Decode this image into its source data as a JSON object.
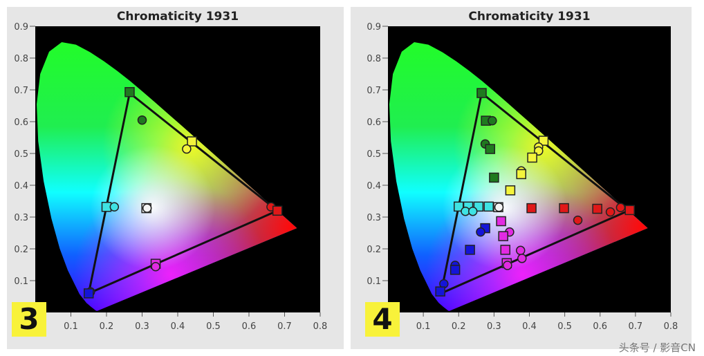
{
  "watermark": "头条号 / 影音CN",
  "colors": {
    "green": "#1f7a1f",
    "yellow": "#f4f43c",
    "cyan": "#3fe3e3",
    "white": "#f4f4f4",
    "red": "#e01818",
    "magenta": "#e22ae2",
    "blue": "#1414d8"
  },
  "chart_data": [
    {
      "type": "scatter",
      "title": "Chromaticity 1931",
      "badge": "3",
      "xlim": [
        0,
        0.8
      ],
      "ylim": [
        0,
        0.9
      ],
      "xticks": [
        "0.1",
        "0.2",
        "0.3",
        "0.4",
        "0.5",
        "0.6",
        "0.7",
        "0.8"
      ],
      "yticks": [
        "0.1",
        "0.2",
        "0.3",
        "0.4",
        "0.5",
        "0.6",
        "0.7",
        "0.8",
        "0.9"
      ],
      "gamut_triangle": [
        [
          0.68,
          0.32
        ],
        [
          0.265,
          0.69
        ],
        [
          0.15,
          0.06
        ]
      ],
      "points": [
        {
          "c": "green",
          "s": "square",
          "x": 0.265,
          "y": 0.693
        },
        {
          "c": "green",
          "s": "circle",
          "x": 0.3,
          "y": 0.605
        },
        {
          "c": "yellow",
          "s": "square",
          "x": 0.44,
          "y": 0.538
        },
        {
          "c": "yellow",
          "s": "circle",
          "x": 0.425,
          "y": 0.514
        },
        {
          "c": "cyan",
          "s": "square",
          "x": 0.2,
          "y": 0.332
        },
        {
          "c": "cyan",
          "s": "circle",
          "x": 0.222,
          "y": 0.332
        },
        {
          "c": "white",
          "s": "square",
          "x": 0.312,
          "y": 0.328
        },
        {
          "c": "white",
          "s": "circle",
          "x": 0.314,
          "y": 0.328
        },
        {
          "c": "red",
          "s": "circle",
          "x": 0.662,
          "y": 0.332
        },
        {
          "c": "red",
          "s": "square",
          "x": 0.68,
          "y": 0.32
        },
        {
          "c": "magenta",
          "s": "square",
          "x": 0.338,
          "y": 0.153
        },
        {
          "c": "magenta",
          "s": "circle",
          "x": 0.338,
          "y": 0.144
        },
        {
          "c": "blue",
          "s": "circle",
          "x": 0.155,
          "y": 0.065
        },
        {
          "c": "blue",
          "s": "square",
          "x": 0.15,
          "y": 0.06
        }
      ]
    },
    {
      "type": "scatter",
      "title": "Chromaticity 1931",
      "badge": "4",
      "xlim": [
        0,
        0.8
      ],
      "ylim": [
        0,
        0.9
      ],
      "xticks": [
        "0.1",
        "0.2",
        "0.3",
        "0.4",
        "0.5",
        "0.6",
        "0.7",
        "0.8"
      ],
      "yticks": [
        "0.1",
        "0.2",
        "0.3",
        "0.4",
        "0.5",
        "0.6",
        "0.7",
        "0.8",
        "0.9"
      ],
      "gamut_triangle": [
        [
          0.68,
          0.32
        ],
        [
          0.265,
          0.69
        ],
        [
          0.15,
          0.06
        ]
      ],
      "points": [
        {
          "c": "green",
          "s": "square",
          "x": 0.265,
          "y": 0.69
        },
        {
          "c": "green",
          "s": "square",
          "x": 0.277,
          "y": 0.603
        },
        {
          "c": "green",
          "s": "circle",
          "x": 0.295,
          "y": 0.603
        },
        {
          "c": "green",
          "s": "circle",
          "x": 0.275,
          "y": 0.53
        },
        {
          "c": "green",
          "s": "square",
          "x": 0.289,
          "y": 0.514
        },
        {
          "c": "green",
          "s": "square",
          "x": 0.3,
          "y": 0.424
        },
        {
          "c": "yellow",
          "s": "square",
          "x": 0.44,
          "y": 0.54
        },
        {
          "c": "yellow",
          "s": "circle",
          "x": 0.426,
          "y": 0.52
        },
        {
          "c": "yellow",
          "s": "circle",
          "x": 0.426,
          "y": 0.508
        },
        {
          "c": "yellow",
          "s": "square",
          "x": 0.408,
          "y": 0.487
        },
        {
          "c": "yellow",
          "s": "circle",
          "x": 0.377,
          "y": 0.445
        },
        {
          "c": "yellow",
          "s": "square",
          "x": 0.377,
          "y": 0.435
        },
        {
          "c": "yellow",
          "s": "square",
          "x": 0.346,
          "y": 0.384
        },
        {
          "c": "cyan",
          "s": "square",
          "x": 0.2,
          "y": 0.333
        },
        {
          "c": "cyan",
          "s": "square",
          "x": 0.227,
          "y": 0.333
        },
        {
          "c": "cyan",
          "s": "square",
          "x": 0.256,
          "y": 0.333
        },
        {
          "c": "cyan",
          "s": "square",
          "x": 0.285,
          "y": 0.333
        },
        {
          "c": "cyan",
          "s": "circle",
          "x": 0.219,
          "y": 0.318
        },
        {
          "c": "cyan",
          "s": "circle",
          "x": 0.24,
          "y": 0.318
        },
        {
          "c": "white",
          "s": "square",
          "x": 0.312,
          "y": 0.331
        },
        {
          "c": "white",
          "s": "circle",
          "x": 0.314,
          "y": 0.331
        },
        {
          "c": "red",
          "s": "square",
          "x": 0.406,
          "y": 0.328
        },
        {
          "c": "red",
          "s": "square",
          "x": 0.498,
          "y": 0.328
        },
        {
          "c": "red",
          "s": "square",
          "x": 0.592,
          "y": 0.326
        },
        {
          "c": "red",
          "s": "circle",
          "x": 0.537,
          "y": 0.29
        },
        {
          "c": "red",
          "s": "circle",
          "x": 0.629,
          "y": 0.316
        },
        {
          "c": "red",
          "s": "circle",
          "x": 0.658,
          "y": 0.33
        },
        {
          "c": "red",
          "s": "square",
          "x": 0.684,
          "y": 0.322
        },
        {
          "c": "magenta",
          "s": "square",
          "x": 0.32,
          "y": 0.287
        },
        {
          "c": "magenta",
          "s": "circle",
          "x": 0.344,
          "y": 0.253
        },
        {
          "c": "magenta",
          "s": "square",
          "x": 0.326,
          "y": 0.24
        },
        {
          "c": "magenta",
          "s": "square",
          "x": 0.332,
          "y": 0.197
        },
        {
          "c": "magenta",
          "s": "circle",
          "x": 0.375,
          "y": 0.195
        },
        {
          "c": "magenta",
          "s": "circle",
          "x": 0.379,
          "y": 0.17
        },
        {
          "c": "magenta",
          "s": "square",
          "x": 0.336,
          "y": 0.155
        },
        {
          "c": "magenta",
          "s": "circle",
          "x": 0.338,
          "y": 0.148
        },
        {
          "c": "blue",
          "s": "square",
          "x": 0.275,
          "y": 0.265
        },
        {
          "c": "blue",
          "s": "circle",
          "x": 0.262,
          "y": 0.253
        },
        {
          "c": "blue",
          "s": "square",
          "x": 0.232,
          "y": 0.197
        },
        {
          "c": "blue",
          "s": "circle",
          "x": 0.19,
          "y": 0.148
        },
        {
          "c": "blue",
          "s": "square",
          "x": 0.19,
          "y": 0.134
        },
        {
          "c": "blue",
          "s": "circle",
          "x": 0.158,
          "y": 0.09
        },
        {
          "c": "blue",
          "s": "square",
          "x": 0.148,
          "y": 0.066
        }
      ]
    }
  ]
}
